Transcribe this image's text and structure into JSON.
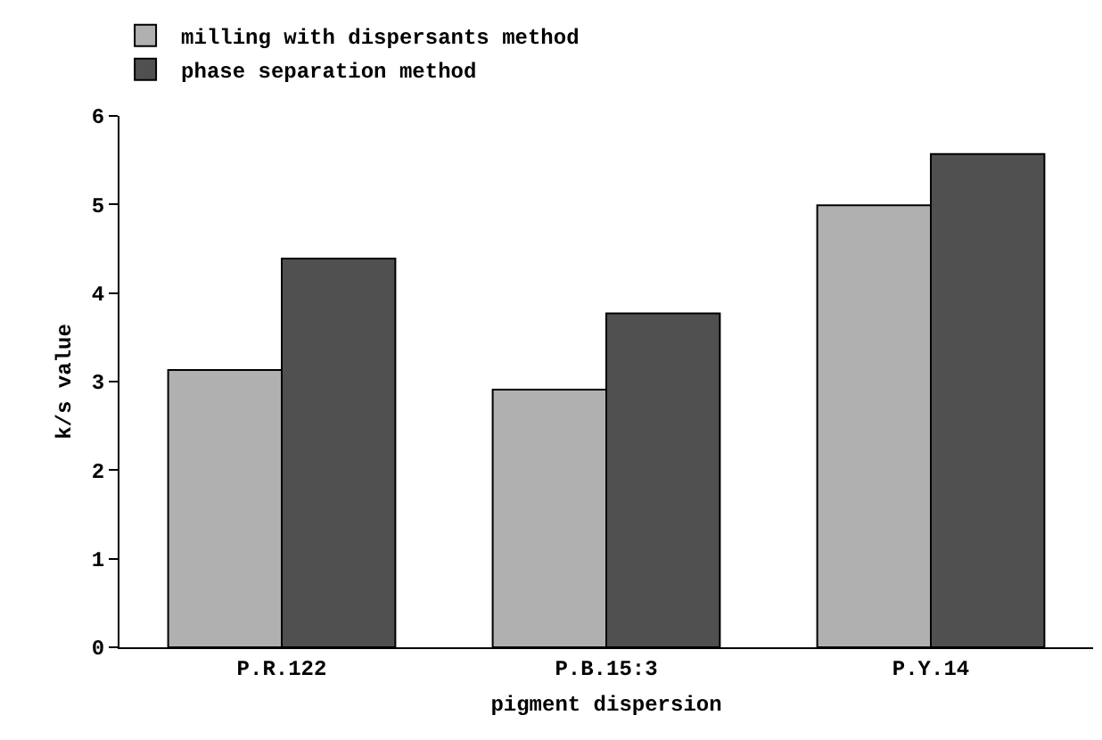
{
  "chart_data": {
    "type": "bar",
    "xlabel": "pigment dispersion",
    "ylabel": "k/s value",
    "categories": [
      "P.R.122",
      "P.B.15:3",
      "P.Y.14"
    ],
    "series": [
      {
        "name": "milling with dispersants method",
        "color": "#b0b0b0",
        "values": [
          3.13,
          2.91,
          4.99
        ]
      },
      {
        "name": "phase separation method",
        "color": "#505050",
        "values": [
          4.39,
          3.77,
          5.57
        ]
      }
    ],
    "ylim": [
      0,
      6
    ],
    "yticks": [
      0,
      1,
      2,
      3,
      4,
      5,
      6
    ],
    "legend": "top left"
  }
}
